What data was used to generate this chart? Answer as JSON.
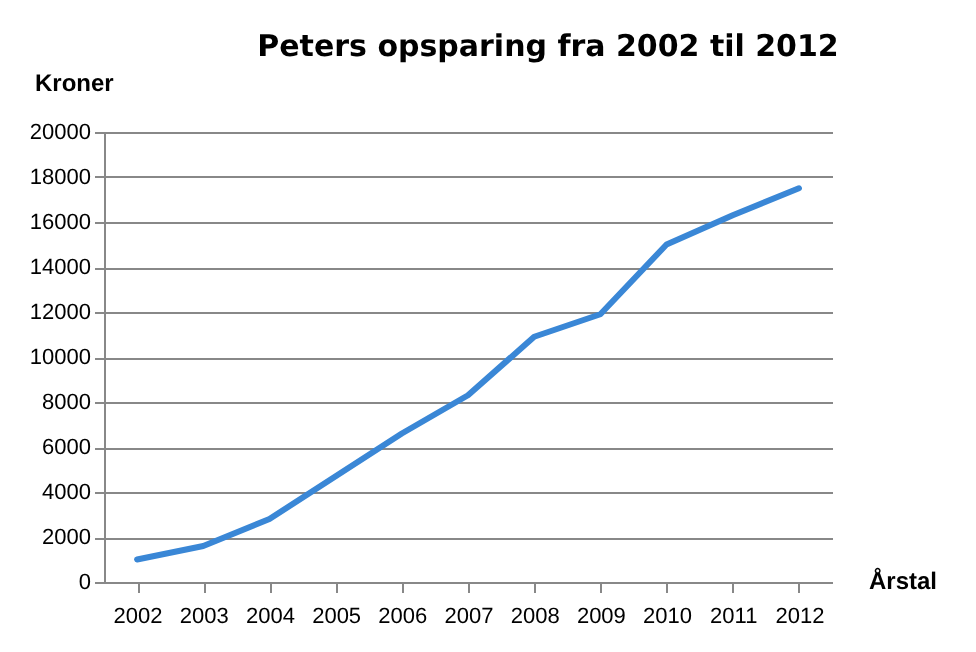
{
  "chart_data": {
    "type": "line",
    "title": "Peters opsparing  fra 2002 til 2012",
    "xlabel": "Årstal",
    "ylabel": "Kroner",
    "categories": [
      "2002",
      "2003",
      "2004",
      "2005",
      "2006",
      "2007",
      "2008",
      "2009",
      "2010",
      "2011",
      "2012"
    ],
    "series": [
      {
        "color": "#3a87d6",
        "values": [
          1000,
          1600,
          2800,
          4700,
          6600,
          8300,
          10900,
          11900,
          15000,
          16300,
          17500
        ]
      }
    ],
    "ylim": [
      0,
      20000
    ],
    "yticks": [
      0,
      2000,
      4000,
      6000,
      8000,
      10000,
      12000,
      14000,
      16000,
      18000,
      20000
    ],
    "grid": "y",
    "marker": "none",
    "line_style": "solid"
  }
}
